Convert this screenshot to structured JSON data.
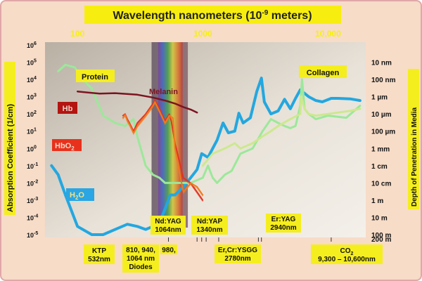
{
  "chart_data": {
    "type": "line",
    "title": "Wavelength nanometers (10",
    "title_exp": "-9",
    "title_tail": " meters)",
    "ylabel": "Absorption Coefficient (1/cm)",
    "ylabel_right": "Depth of Penetration in Media",
    "x_scale": "log",
    "y_scale": "log",
    "xlim": [
      55,
      20000
    ],
    "ylim": [
      1e-05,
      1000000
    ],
    "x_tick_labels": [
      "100",
      "1000",
      "10,000"
    ],
    "x_ticks": [
      100,
      1000,
      10000
    ],
    "y_tick_labels": [
      {
        "base": "10",
        "exp": "6"
      },
      {
        "base": "10",
        "exp": "5"
      },
      {
        "base": "10",
        "exp": "4"
      },
      {
        "base": "10",
        "exp": "3"
      },
      {
        "base": "10",
        "exp": "2"
      },
      {
        "base": "10",
        "exp": "1"
      },
      {
        "base": "10",
        "exp": "0"
      },
      {
        "base": "10",
        "exp": "-1"
      },
      {
        "base": "10",
        "exp": "-2"
      },
      {
        "base": "10",
        "exp": "-3"
      },
      {
        "base": "10",
        "exp": "-4"
      },
      {
        "base": "10",
        "exp": "-5"
      }
    ],
    "y_ticks": [
      1000000,
      100000,
      10000,
      1000,
      100,
      10,
      1,
      0.1,
      0.01,
      0.001,
      0.0001,
      1e-05
    ],
    "right_tick_labels": [
      "10 nm",
      "100 nm",
      "1 µm",
      "10 µm",
      "100 µm",
      "1 mm",
      "1 cm",
      "10 cm",
      "1 m",
      "10 m",
      "100 m",
      "200 m"
    ],
    "right_ticks": [
      100000,
      10000,
      1000,
      100,
      10,
      1,
      0.1,
      0.01,
      0.001,
      0.0001,
      1e-05,
      5e-06
    ],
    "series": [
      {
        "name": "H2O",
        "label_main": "H",
        "label_sub": "2",
        "label_tail": "O",
        "color": "#23a7e0",
        "x": [
          62,
          70,
          80,
          100,
          130,
          160,
          200,
          250,
          300,
          350,
          400,
          450,
          500,
          550,
          600,
          700,
          800,
          900,
          980,
          1100,
          1200,
          1300,
          1450,
          1600,
          1800,
          1940,
          2100,
          2400,
          2700,
          2940,
          3100,
          3500,
          4000,
          4500,
          5000,
          5500,
          6000,
          7000,
          8000,
          9000,
          10600,
          12000,
          15000,
          18000
        ],
        "y": [
          0.1,
          0.03,
          0.002,
          3e-05,
          1e-05,
          1e-05,
          2e-05,
          4e-05,
          3e-05,
          2e-05,
          3e-05,
          5e-05,
          0.0003,
          0.002,
          0.002,
          0.006,
          0.02,
          0.06,
          0.5,
          0.3,
          1,
          3,
          30,
          8,
          10,
          110,
          30,
          60,
          2000,
          12000,
          500,
          100,
          150,
          700,
          200,
          800,
          2500,
          1000,
          600,
          500,
          800,
          800,
          750,
          600
        ]
      },
      {
        "name": "Protein",
        "color": "#9ce89a",
        "x": [
          70,
          80,
          95,
          110,
          130,
          160,
          200,
          240,
          280,
          300,
          350,
          400,
          450,
          500,
          600,
          700,
          800,
          1000,
          1100,
          1200,
          1300,
          1500,
          1700,
          2000,
          2500,
          3000,
          3500,
          4000,
          4500,
          5000,
          5500,
          6000,
          6200,
          6500,
          7000,
          8000,
          10000,
          14000,
          18000
        ],
        "y": [
          30000,
          70000,
          50000,
          10000,
          3000,
          80,
          30,
          20,
          50,
          5,
          0.1,
          0.03,
          0.02,
          0.01,
          0.01,
          0.01,
          0.01,
          0.02,
          0.1,
          0.02,
          0.01,
          0.03,
          0.05,
          0.5,
          1,
          10,
          50,
          30,
          20,
          15,
          20,
          300,
          10000,
          200,
          100,
          50,
          80,
          60,
          300
        ]
      },
      {
        "name": "Melanin",
        "color": "#7b1420",
        "x": [
          100,
          150,
          200,
          300,
          400,
          500,
          600,
          700,
          800,
          900
        ],
        "y": [
          2000,
          1500,
          1600,
          1300,
          900,
          600,
          400,
          250,
          180,
          120
        ]
      },
      {
        "name": "Hb",
        "color": "#e23222",
        "x": [
          230,
          240,
          250,
          260,
          280,
          300,
          350,
          400,
          415,
          430,
          500,
          540,
          560,
          600,
          700,
          800,
          900,
          1000
        ],
        "y": [
          80,
          100,
          50,
          30,
          10,
          30,
          100,
          400,
          600,
          400,
          40,
          100,
          40,
          2,
          0.02,
          0.01,
          0.003,
          0.001
        ]
      },
      {
        "name": "HbO2",
        "label_main": "HbO",
        "label_sub": "2",
        "color": "#ef7b1d",
        "x": [
          230,
          240,
          250,
          260,
          280,
          300,
          350,
          400,
          415,
          430,
          500,
          540,
          577,
          600,
          700,
          800,
          900,
          1000
        ],
        "y": [
          60,
          90,
          40,
          25,
          8,
          20,
          80,
          300,
          500,
          300,
          30,
          80,
          60,
          1,
          0.003,
          0.01,
          0.006,
          0.002
        ]
      },
      {
        "name": "Collagen",
        "color": "#cde88f",
        "x": [
          1000,
          1200,
          1500,
          1800,
          2000,
          2500,
          3000,
          3500,
          4000,
          5000,
          6000,
          6100,
          6500,
          7000,
          8000,
          10000,
          12000,
          15000,
          18000
        ],
        "y": [
          0.1,
          0.5,
          1,
          2,
          1,
          2,
          5,
          10,
          20,
          50,
          100,
          1000,
          200,
          100,
          80,
          100,
          120,
          150,
          200
        ]
      }
    ],
    "annotations": [
      {
        "lines": [
          "KTP",
          "532nm"
        ],
        "x": 532
      },
      {
        "lines": [
          "810, 940,",
          "1064 nm",
          "Diodes"
        ],
        "x": 900
      },
      {
        "lines": [
          "980,"
        ],
        "x": 980
      },
      {
        "lines": [
          "Nd:YAG",
          "1064nm"
        ],
        "x": 1064
      },
      {
        "lines": [
          "Nd:YAP",
          "1340nm"
        ],
        "x": 1340
      },
      {
        "lines": [
          "Er:YAG",
          "2940nm"
        ],
        "x": 2940
      },
      {
        "lines": [
          "Er,Cr:YSGG",
          "2780nm"
        ],
        "x": 2780
      },
      {
        "lines": [
          "CO",
          "9,300 – 10,600nm"
        ],
        "sub": "2",
        "x": 10600
      }
    ],
    "grid": false,
    "colors": {
      "label_box": "#f5ee1e",
      "title_box": "#f7ee10",
      "outer_bg": "#f7dcc8"
    }
  }
}
